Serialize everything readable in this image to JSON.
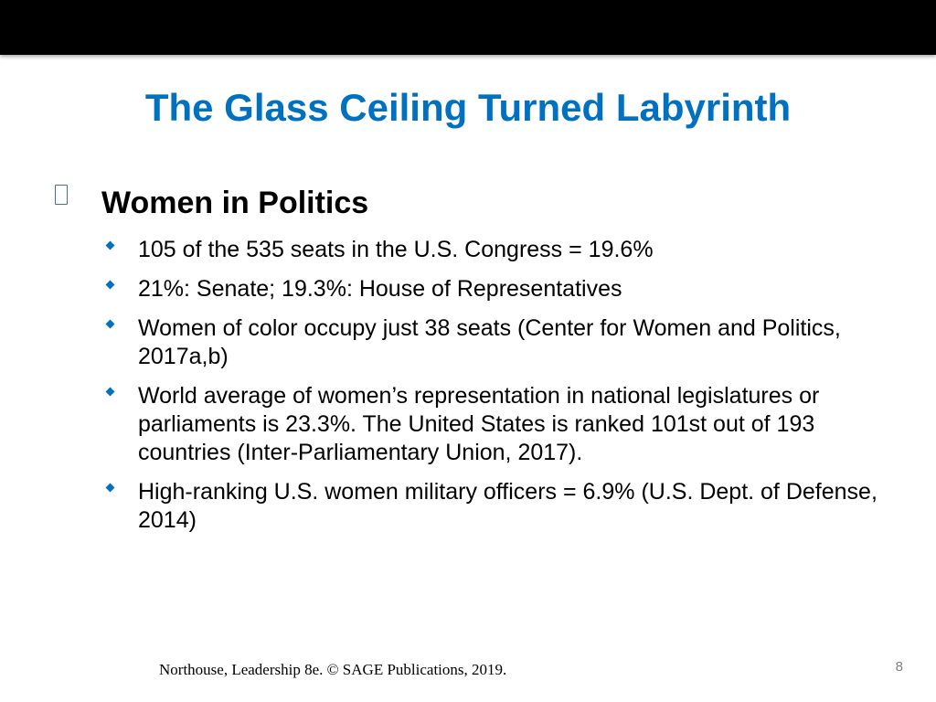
{
  "slide": {
    "title": "The Glass Ceiling Turned Labyrinth",
    "section": {
      "label": "Women in Politics",
      "bullet_icon": "square-bullet-icon"
    },
    "bullets": [
      {
        "text": "105 of the 535 seats in the U.S. Congress = 19.6%"
      },
      {
        "text": "21%: Senate; 19.3%: House of Representatives"
      },
      {
        "text": "Women of color occupy just 38 seats (Center for Women and Politics, 2017a,b)"
      },
      {
        "text": "World average of women’s representation in national legislatures or parliaments is 23.3%. The United States is ranked 101st out of 193 countries  (Inter-Parliamentary Union, 2017)."
      },
      {
        "text": "High-ranking U.S. women military officers = 6.9%  (U.S. Dept. of Defense, 2014)"
      }
    ],
    "bullet_icon": "diamond-bullet-icon",
    "footer": "Northouse, Leadership 8e. ©  SAGE Publications, 2019.",
    "page_number": "8",
    "colors": {
      "title": "#0070c0",
      "bullet": "#0070c0",
      "top_bar": "#000000",
      "page_number": "#808080"
    }
  }
}
